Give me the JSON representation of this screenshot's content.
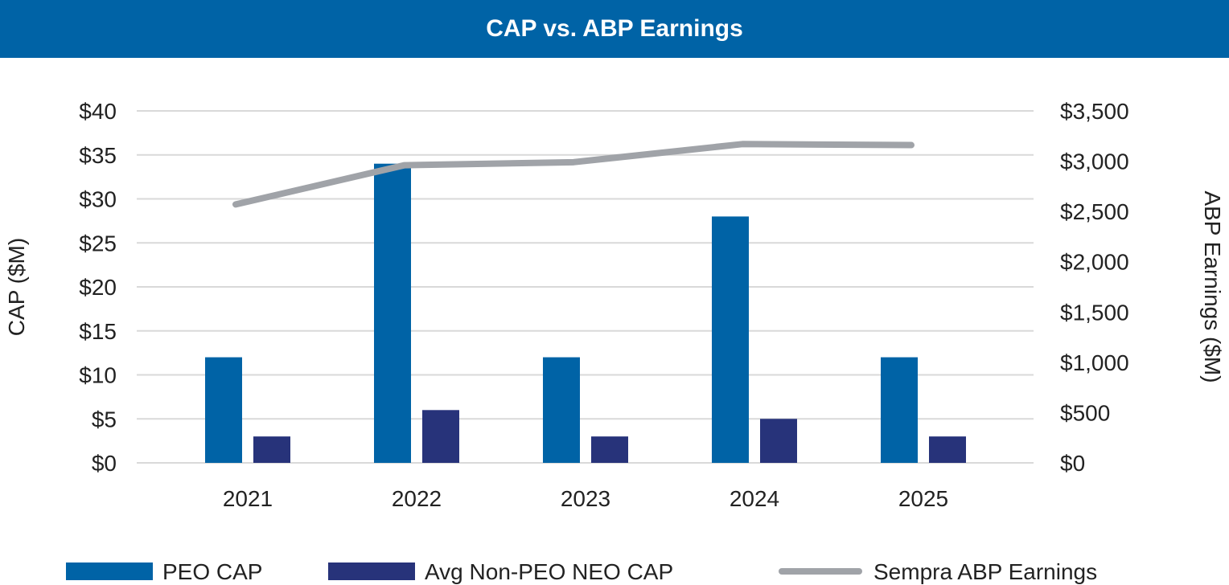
{
  "chart_data": {
    "type": "bar",
    "title": "CAP vs. ABP Earnings",
    "categories": [
      "2021",
      "2022",
      "2023",
      "2024",
      "2025"
    ],
    "series": [
      {
        "name": "PEO CAP",
        "axis": "left",
        "type": "bar",
        "color": "#0063A6",
        "values": [
          12,
          34,
          12,
          28,
          12
        ]
      },
      {
        "name": "Avg Non-PEO NEO CAP",
        "axis": "left",
        "type": "bar",
        "color": "#27337A",
        "values": [
          3,
          6,
          3,
          5,
          3
        ]
      },
      {
        "name": "Sempra ABP Earnings",
        "axis": "right",
        "type": "line",
        "color": "#A0A3A8",
        "values": [
          2570,
          2960,
          2990,
          3170,
          3160
        ]
      }
    ],
    "ylabel": "CAP ($M)",
    "y2label": "ABP Earnings ($M)",
    "ylim": [
      0,
      40
    ],
    "y2lim": [
      0,
      3500
    ],
    "yticks": [
      "$0",
      "$5",
      "$10",
      "$15",
      "$20",
      "$25",
      "$30",
      "$35",
      "$40"
    ],
    "y2ticks": [
      "$0",
      "$500",
      "$1,000",
      "$1,500",
      "$2,000",
      "$2,500",
      "$3,000",
      "$3,500"
    ],
    "grid": true,
    "legend": "bottom"
  }
}
